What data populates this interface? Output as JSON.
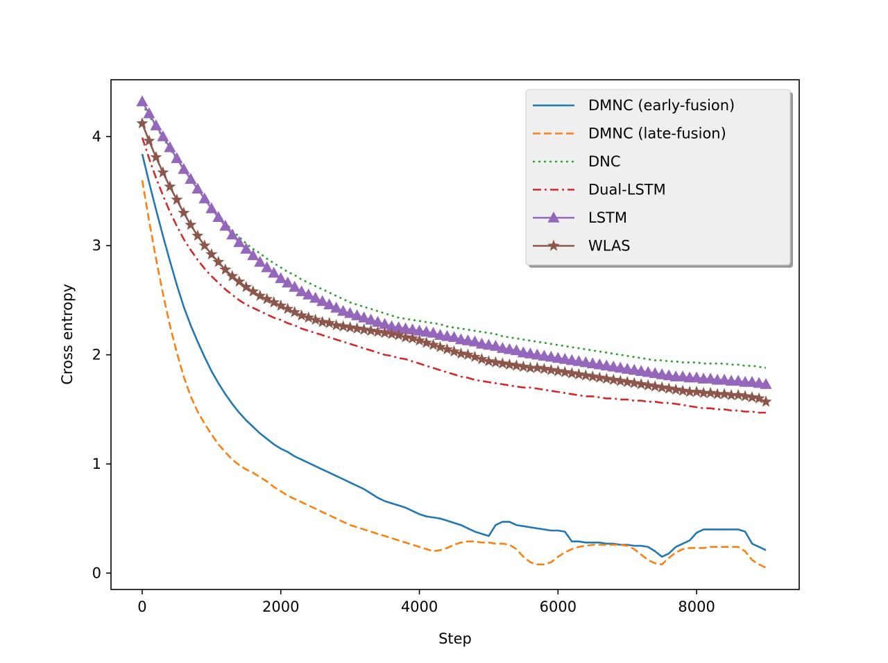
{
  "chart_data": {
    "type": "line",
    "title": "",
    "xlabel": "Step",
    "ylabel": "Cross entropy",
    "xlim": [
      -450,
      9480
    ],
    "ylim": [
      -0.15,
      4.52
    ],
    "xticks": [
      0,
      2000,
      4000,
      6000,
      8000
    ],
    "xtick_labels": [
      "0",
      "2000",
      "4000",
      "6000",
      "8000"
    ],
    "yticks": [
      0,
      1,
      2,
      3,
      4
    ],
    "ytick_labels": [
      "0",
      "1",
      "2",
      "3",
      "4"
    ],
    "grid": false,
    "legend_position": "top-right",
    "x": [
      0,
      100,
      200,
      300,
      400,
      500,
      600,
      700,
      800,
      900,
      1000,
      1100,
      1200,
      1300,
      1400,
      1500,
      1600,
      1700,
      1800,
      1900,
      2000,
      2100,
      2200,
      2300,
      2400,
      2500,
      2600,
      2700,
      2800,
      2900,
      3000,
      3100,
      3200,
      3300,
      3400,
      3500,
      3600,
      3700,
      3800,
      3900,
      4000,
      4100,
      4200,
      4300,
      4400,
      4500,
      4600,
      4700,
      4800,
      4900,
      5000,
      5100,
      5200,
      5300,
      5400,
      5500,
      5600,
      5700,
      5800,
      5900,
      6000,
      6100,
      6200,
      6300,
      6400,
      6500,
      6600,
      6700,
      6800,
      6900,
      7000,
      7100,
      7200,
      7300,
      7400,
      7500,
      7600,
      7700,
      7800,
      7900,
      8000,
      8100,
      8200,
      8300,
      8400,
      8500,
      8600,
      8700,
      8800,
      8900,
      9000
    ],
    "series": [
      {
        "name": "DMNC (early-fusion)",
        "color": "#1f77b4",
        "style": "solid",
        "marker": "none",
        "values": [
          3.84,
          3.58,
          3.33,
          3.09,
          2.86,
          2.64,
          2.44,
          2.27,
          2.12,
          1.98,
          1.85,
          1.74,
          1.64,
          1.55,
          1.47,
          1.4,
          1.34,
          1.28,
          1.23,
          1.18,
          1.14,
          1.11,
          1.07,
          1.04,
          1.01,
          0.98,
          0.95,
          0.92,
          0.89,
          0.86,
          0.83,
          0.8,
          0.77,
          0.73,
          0.69,
          0.66,
          0.64,
          0.62,
          0.6,
          0.57,
          0.54,
          0.52,
          0.51,
          0.5,
          0.48,
          0.46,
          0.44,
          0.41,
          0.38,
          0.36,
          0.34,
          0.44,
          0.47,
          0.47,
          0.44,
          0.43,
          0.42,
          0.41,
          0.4,
          0.39,
          0.39,
          0.38,
          0.29,
          0.29,
          0.28,
          0.28,
          0.28,
          0.27,
          0.27,
          0.26,
          0.26,
          0.25,
          0.25,
          0.24,
          0.2,
          0.15,
          0.18,
          0.24,
          0.27,
          0.3,
          0.37,
          0.4,
          0.4,
          0.4,
          0.4,
          0.4,
          0.4,
          0.38,
          0.27,
          0.24,
          0.21
        ]
      },
      {
        "name": "DMNC (late-fusion)",
        "color": "#ff7f0e",
        "style": "dashed",
        "marker": "none",
        "values": [
          3.6,
          3.23,
          2.88,
          2.56,
          2.27,
          2.02,
          1.8,
          1.62,
          1.48,
          1.37,
          1.27,
          1.18,
          1.11,
          1.04,
          0.99,
          0.95,
          0.92,
          0.88,
          0.84,
          0.79,
          0.75,
          0.71,
          0.68,
          0.65,
          0.62,
          0.59,
          0.56,
          0.53,
          0.5,
          0.47,
          0.44,
          0.42,
          0.4,
          0.38,
          0.36,
          0.34,
          0.32,
          0.3,
          0.28,
          0.26,
          0.24,
          0.22,
          0.2,
          0.21,
          0.23,
          0.26,
          0.28,
          0.29,
          0.29,
          0.28,
          0.28,
          0.27,
          0.27,
          0.26,
          0.22,
          0.15,
          0.1,
          0.08,
          0.08,
          0.1,
          0.15,
          0.19,
          0.22,
          0.24,
          0.25,
          0.26,
          0.26,
          0.26,
          0.26,
          0.26,
          0.25,
          0.22,
          0.17,
          0.12,
          0.09,
          0.08,
          0.14,
          0.19,
          0.22,
          0.23,
          0.23,
          0.23,
          0.24,
          0.24,
          0.24,
          0.24,
          0.24,
          0.2,
          0.12,
          0.08,
          0.05
        ]
      },
      {
        "name": "DNC",
        "color": "#2ca02c",
        "style": "dotted",
        "marker": "none",
        "values": [
          4.3,
          4.19,
          4.09,
          3.99,
          3.89,
          3.79,
          3.7,
          3.61,
          3.52,
          3.44,
          3.36,
          3.28,
          3.21,
          3.14,
          3.08,
          3.02,
          2.97,
          2.93,
          2.88,
          2.84,
          2.8,
          2.76,
          2.73,
          2.69,
          2.66,
          2.63,
          2.6,
          2.57,
          2.54,
          2.51,
          2.48,
          2.46,
          2.44,
          2.42,
          2.4,
          2.38,
          2.36,
          2.34,
          2.33,
          2.32,
          2.31,
          2.3,
          2.29,
          2.28,
          2.26,
          2.25,
          2.24,
          2.23,
          2.22,
          2.21,
          2.2,
          2.19,
          2.17,
          2.16,
          2.15,
          2.14,
          2.13,
          2.12,
          2.11,
          2.1,
          2.09,
          2.08,
          2.07,
          2.06,
          2.05,
          2.04,
          2.03,
          2.02,
          2.01,
          2.0,
          1.99,
          1.98,
          1.97,
          1.96,
          1.95,
          1.95,
          1.94,
          1.94,
          1.93,
          1.93,
          1.93,
          1.92,
          1.92,
          1.92,
          1.92,
          1.91,
          1.91,
          1.9,
          1.9,
          1.89,
          1.88
        ]
      },
      {
        "name": "Dual-LSTM",
        "color": "#d62728",
        "style": "dashdot",
        "marker": "none",
        "values": [
          3.99,
          3.8,
          3.62,
          3.46,
          3.31,
          3.18,
          3.06,
          2.96,
          2.87,
          2.79,
          2.72,
          2.66,
          2.6,
          2.55,
          2.5,
          2.46,
          2.43,
          2.4,
          2.37,
          2.34,
          2.32,
          2.29,
          2.27,
          2.24,
          2.22,
          2.2,
          2.18,
          2.16,
          2.14,
          2.12,
          2.1,
          2.08,
          2.06,
          2.04,
          2.02,
          2.0,
          1.99,
          1.97,
          1.96,
          1.94,
          1.92,
          1.9,
          1.88,
          1.86,
          1.84,
          1.82,
          1.8,
          1.79,
          1.77,
          1.76,
          1.75,
          1.74,
          1.73,
          1.72,
          1.71,
          1.7,
          1.7,
          1.69,
          1.68,
          1.67,
          1.66,
          1.65,
          1.64,
          1.63,
          1.62,
          1.62,
          1.61,
          1.6,
          1.6,
          1.59,
          1.59,
          1.58,
          1.58,
          1.57,
          1.57,
          1.56,
          1.56,
          1.55,
          1.54,
          1.53,
          1.52,
          1.51,
          1.51,
          1.5,
          1.5,
          1.49,
          1.49,
          1.48,
          1.48,
          1.47,
          1.47
        ]
      },
      {
        "name": "LSTM",
        "color": "#9467bd",
        "style": "solid",
        "marker": "triangle",
        "values": [
          4.32,
          4.21,
          4.1,
          4.0,
          3.9,
          3.8,
          3.7,
          3.61,
          3.52,
          3.43,
          3.34,
          3.26,
          3.18,
          3.1,
          3.03,
          2.97,
          2.91,
          2.85,
          2.8,
          2.75,
          2.7,
          2.66,
          2.62,
          2.58,
          2.55,
          2.52,
          2.49,
          2.46,
          2.43,
          2.4,
          2.38,
          2.36,
          2.34,
          2.32,
          2.3,
          2.28,
          2.26,
          2.25,
          2.24,
          2.23,
          2.22,
          2.21,
          2.2,
          2.18,
          2.17,
          2.16,
          2.14,
          2.13,
          2.12,
          2.1,
          2.09,
          2.08,
          2.06,
          2.05,
          2.04,
          2.02,
          2.01,
          2.0,
          1.99,
          1.98,
          1.97,
          1.96,
          1.95,
          1.94,
          1.93,
          1.92,
          1.91,
          1.9,
          1.89,
          1.88,
          1.87,
          1.86,
          1.85,
          1.84,
          1.83,
          1.82,
          1.81,
          1.8,
          1.8,
          1.79,
          1.79,
          1.78,
          1.78,
          1.77,
          1.77,
          1.76,
          1.76,
          1.75,
          1.75,
          1.74,
          1.73
        ]
      },
      {
        "name": "WLAS",
        "color": "#8c564b",
        "style": "solid",
        "marker": "star",
        "values": [
          4.12,
          3.96,
          3.81,
          3.67,
          3.54,
          3.42,
          3.3,
          3.19,
          3.09,
          3.0,
          2.92,
          2.85,
          2.78,
          2.72,
          2.67,
          2.62,
          2.58,
          2.54,
          2.51,
          2.48,
          2.45,
          2.42,
          2.39,
          2.36,
          2.34,
          2.32,
          2.3,
          2.29,
          2.27,
          2.26,
          2.25,
          2.24,
          2.23,
          2.22,
          2.21,
          2.2,
          2.19,
          2.18,
          2.16,
          2.15,
          2.13,
          2.11,
          2.09,
          2.07,
          2.05,
          2.03,
          2.01,
          2.0,
          1.98,
          1.96,
          1.94,
          1.93,
          1.92,
          1.91,
          1.9,
          1.89,
          1.88,
          1.88,
          1.87,
          1.86,
          1.85,
          1.84,
          1.83,
          1.82,
          1.81,
          1.8,
          1.79,
          1.78,
          1.77,
          1.76,
          1.75,
          1.74,
          1.73,
          1.72,
          1.71,
          1.7,
          1.69,
          1.68,
          1.67,
          1.66,
          1.66,
          1.65,
          1.65,
          1.64,
          1.64,
          1.63,
          1.63,
          1.62,
          1.61,
          1.6,
          1.57
        ]
      }
    ]
  }
}
